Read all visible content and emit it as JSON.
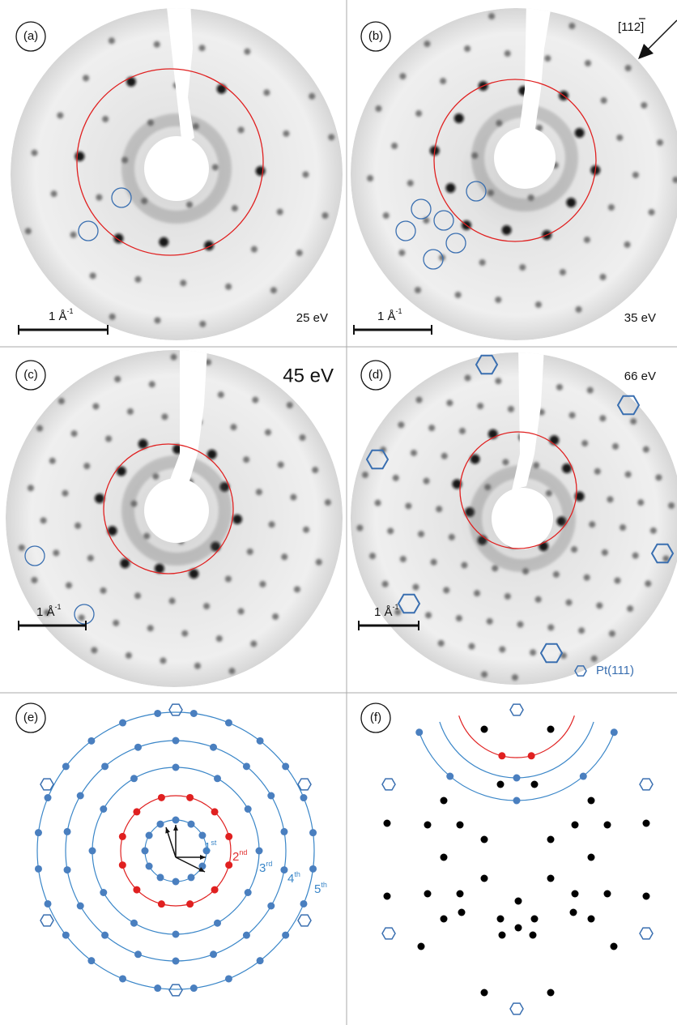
{
  "panels": [
    {
      "label": "(a)",
      "energy": "25 eV",
      "scale_bar": {
        "text": "1 Å",
        "sup": "-1"
      }
    },
    {
      "label": "(b)",
      "energy": "35 eV",
      "scale_bar": {
        "text": "1 Å",
        "sup": "-1"
      },
      "direction": {
        "open": "[11",
        "bar": "2",
        "close": "]"
      }
    },
    {
      "label": "(c)",
      "energy": "45 eV",
      "scale_bar": {
        "text": "1 Å",
        "sup": "-1"
      }
    },
    {
      "label": "(d)",
      "energy": "66 eV",
      "scale_bar": {
        "text": "1 Å",
        "sup": "-1"
      },
      "legend": "Pt(111)"
    },
    {
      "label": "(e)",
      "shells": [
        {
          "num": "1",
          "sup": "st"
        },
        {
          "num": "2",
          "sup": "nd"
        },
        {
          "num": "3",
          "sup": "rd"
        },
        {
          "num": "4",
          "sup": "th"
        },
        {
          "num": "5",
          "sup": "th"
        }
      ]
    },
    {
      "label": "(f)"
    }
  ]
}
